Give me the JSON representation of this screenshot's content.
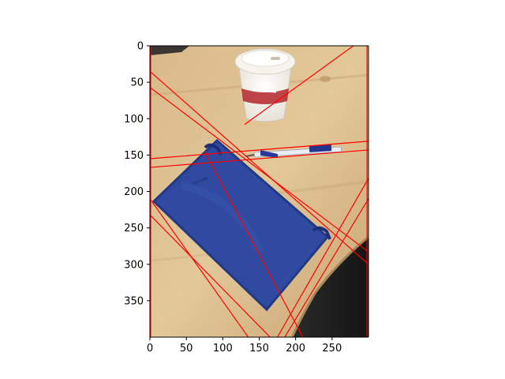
{
  "chart_data": {
    "type": "image",
    "title": "",
    "xlabel": "",
    "ylabel": "",
    "xlim": [
      0,
      300
    ],
    "ylim": [
      400,
      0
    ],
    "x_ticks": [
      0,
      50,
      100,
      150,
      200,
      250
    ],
    "y_ticks": [
      0,
      50,
      100,
      150,
      200,
      250,
      300,
      350
    ],
    "grid": false,
    "legend": "none",
    "image_content": "photo of a wooden table with a blue notebook, a paper coffee cup and a pen",
    "overlay_color": "#ff0000",
    "detected_lines": [
      {
        "x": [
          0,
          300
        ],
        "y": [
          35,
          300
        ]
      },
      {
        "x": [
          0,
          300
        ],
        "y": [
          57,
          283
        ]
      },
      {
        "x": [
          0,
          300
        ],
        "y": [
          155,
          131
        ]
      },
      {
        "x": [
          0,
          300
        ],
        "y": [
          167,
          143
        ]
      },
      {
        "x": [
          130,
          300
        ],
        "y": [
          108,
          -15
        ]
      },
      {
        "x": [
          0,
          135
        ],
        "y": [
          210,
          400
        ]
      },
      {
        "x": [
          0,
          165
        ],
        "y": [
          232,
          400
        ]
      },
      {
        "x": [
          175,
          300
        ],
        "y": [
          400,
          182
        ]
      },
      {
        "x": [
          185,
          300
        ],
        "y": [
          400,
          210
        ]
      },
      {
        "x": [
          75,
          210
        ],
        "y": [
          145,
          400
        ]
      },
      {
        "x": [
          1,
          1
        ],
        "y": [
          0,
          400
        ]
      },
      {
        "x": [
          298,
          298
        ],
        "y": [
          0,
          400
        ]
      }
    ]
  }
}
